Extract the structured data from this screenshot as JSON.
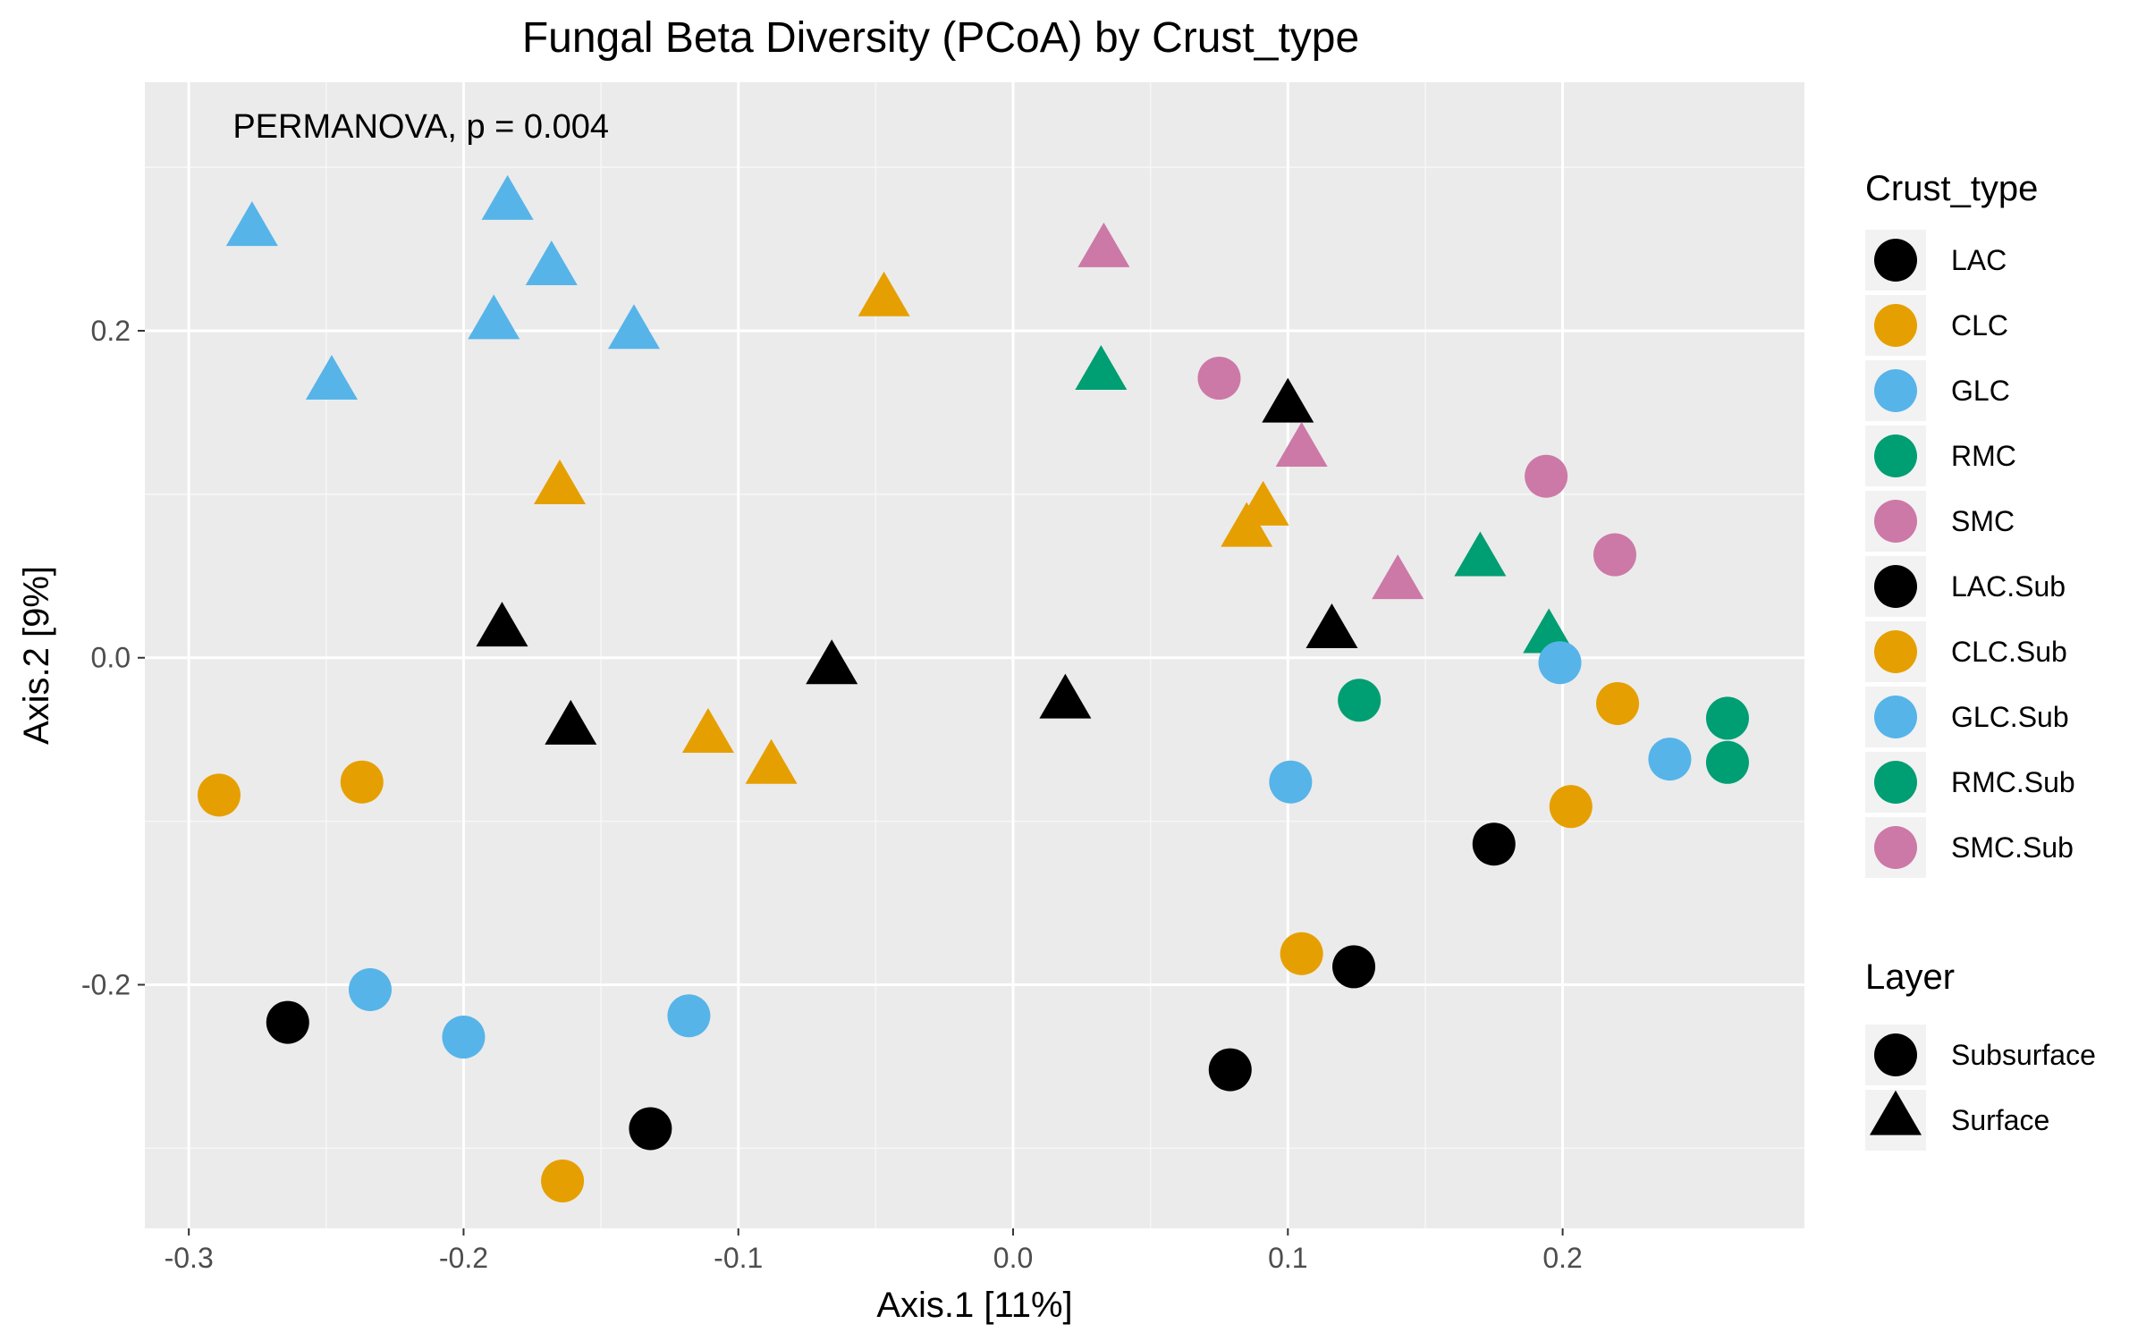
{
  "chart_data": {
    "type": "scatter",
    "title": "Fungal Beta Diversity (PCoA) by Crust_type",
    "xlabel": "Axis.1   [11%]",
    "ylabel": "Axis.2   [9%]",
    "xlim": [
      -0.316,
      0.288
    ],
    "ylim": [
      -0.349,
      0.352
    ],
    "xticks": [
      -0.3,
      -0.2,
      -0.1,
      0.0,
      0.1,
      0.2
    ],
    "xtick_labels": [
      "-0.3",
      "-0.2",
      "-0.1",
      "0.0",
      "0.1",
      "0.2"
    ],
    "yticks": [
      -0.2,
      0.0,
      0.2
    ],
    "ytick_labels": [
      "-0.2",
      "0.0",
      "0.2"
    ],
    "grid": true,
    "annotation": {
      "text": "PERMANOVA, p = 0.004",
      "x": -0.284,
      "y": 0.318
    },
    "legend_placement": "right",
    "legend_crust": {
      "title": "Crust_type",
      "items": [
        {
          "label": "LAC",
          "color": "#000000"
        },
        {
          "label": "CLC",
          "color": "#E69F00"
        },
        {
          "label": "GLC",
          "color": "#56B4E9"
        },
        {
          "label": "RMC",
          "color": "#009E73"
        },
        {
          "label": "SMC",
          "color": "#CC79A7"
        },
        {
          "label": "LAC.Sub",
          "color": "#000000"
        },
        {
          "label": "CLC.Sub",
          "color": "#E69F00"
        },
        {
          "label": "GLC.Sub",
          "color": "#56B4E9"
        },
        {
          "label": "RMC.Sub",
          "color": "#009E73"
        },
        {
          "label": "SMC.Sub",
          "color": "#CC79A7"
        }
      ]
    },
    "legend_layer": {
      "title": "Layer",
      "items": [
        {
          "label": "Subsurface",
          "shape": "circle"
        },
        {
          "label": "Surface",
          "shape": "triangle"
        }
      ]
    },
    "series": [
      {
        "name": "LAC",
        "color": "#000000",
        "shape": "triangle",
        "points": [
          [
            0.1,
            0.153
          ],
          [
            0.116,
            0.015
          ],
          [
            0.019,
            -0.028
          ],
          [
            -0.066,
            -0.007
          ],
          [
            -0.186,
            0.016
          ],
          [
            -0.161,
            -0.044
          ]
        ]
      },
      {
        "name": "CLC",
        "color": "#E69F00",
        "shape": "triangle",
        "points": [
          [
            -0.047,
            0.218
          ],
          [
            -0.165,
            0.103
          ],
          [
            0.091,
            0.09
          ],
          [
            0.085,
            0.077
          ],
          [
            -0.111,
            -0.049
          ],
          [
            -0.088,
            -0.068
          ]
        ]
      },
      {
        "name": "GLC",
        "color": "#56B4E9",
        "shape": "triangle",
        "points": [
          [
            -0.277,
            0.261
          ],
          [
            -0.248,
            0.167
          ],
          [
            -0.184,
            0.277
          ],
          [
            -0.168,
            0.237
          ],
          [
            -0.189,
            0.204
          ],
          [
            -0.138,
            0.198
          ]
        ]
      },
      {
        "name": "RMC",
        "color": "#009E73",
        "shape": "triangle",
        "points": [
          [
            0.032,
            0.173
          ],
          [
            0.17,
            0.059
          ],
          [
            0.195,
            0.012
          ]
        ]
      },
      {
        "name": "SMC",
        "color": "#CC79A7",
        "shape": "triangle",
        "points": [
          [
            0.033,
            0.248
          ],
          [
            0.105,
            0.126
          ],
          [
            0.14,
            0.045
          ]
        ]
      },
      {
        "name": "LAC.Sub",
        "color": "#000000",
        "shape": "circle",
        "points": [
          [
            -0.264,
            -0.223
          ],
          [
            -0.132,
            -0.288
          ],
          [
            0.079,
            -0.252
          ],
          [
            0.124,
            -0.189
          ],
          [
            0.175,
            -0.114
          ]
        ]
      },
      {
        "name": "CLC.Sub",
        "color": "#E69F00",
        "shape": "circle",
        "points": [
          [
            -0.289,
            -0.084
          ],
          [
            -0.237,
            -0.076
          ],
          [
            -0.164,
            -0.32
          ],
          [
            0.105,
            -0.181
          ],
          [
            0.203,
            -0.091
          ],
          [
            0.22,
            -0.028
          ]
        ]
      },
      {
        "name": "GLC.Sub",
        "color": "#56B4E9",
        "shape": "circle",
        "points": [
          [
            -0.234,
            -0.203
          ],
          [
            -0.2,
            -0.232
          ],
          [
            -0.118,
            -0.219
          ],
          [
            0.101,
            -0.076
          ],
          [
            0.199,
            -0.003
          ],
          [
            0.239,
            -0.062
          ]
        ]
      },
      {
        "name": "RMC.Sub",
        "color": "#009E73",
        "shape": "circle",
        "points": [
          [
            0.126,
            -0.026
          ],
          [
            0.26,
            -0.037
          ],
          [
            0.26,
            -0.064
          ]
        ]
      },
      {
        "name": "SMC.Sub",
        "color": "#CC79A7",
        "shape": "circle",
        "points": [
          [
            0.075,
            0.171
          ],
          [
            0.194,
            0.111
          ],
          [
            0.219,
            0.063
          ]
        ]
      }
    ]
  }
}
